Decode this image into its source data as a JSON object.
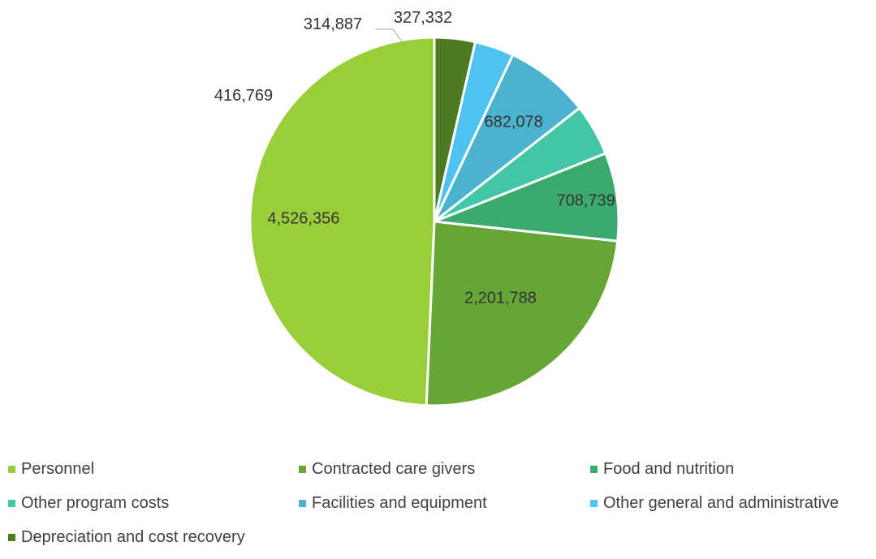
{
  "chart_data": {
    "type": "pie",
    "title": "",
    "categories": [
      "Personnel",
      "Contracted care givers",
      "Food and nutrition",
      "Other program costs",
      "Facilities and equipment",
      "Other general and administrative",
      "Depreciation and cost recovery"
    ],
    "values": [
      4526356,
      2201788,
      708739,
      416769,
      682078,
      314887,
      327332
    ],
    "value_labels": [
      "4,526,356",
      "2,201,788",
      "708,739",
      "416,769",
      "682,078",
      "314,887",
      "327,332"
    ],
    "colors": [
      "#9ACD3A",
      "#66A636",
      "#3BAA6E",
      "#43C6A6",
      "#4BB3CE",
      "#4FC3F0",
      "#4E7A22"
    ],
    "legend_position": "bottom",
    "start_angle": "12 o'clock",
    "direction": "counterclockwise"
  }
}
